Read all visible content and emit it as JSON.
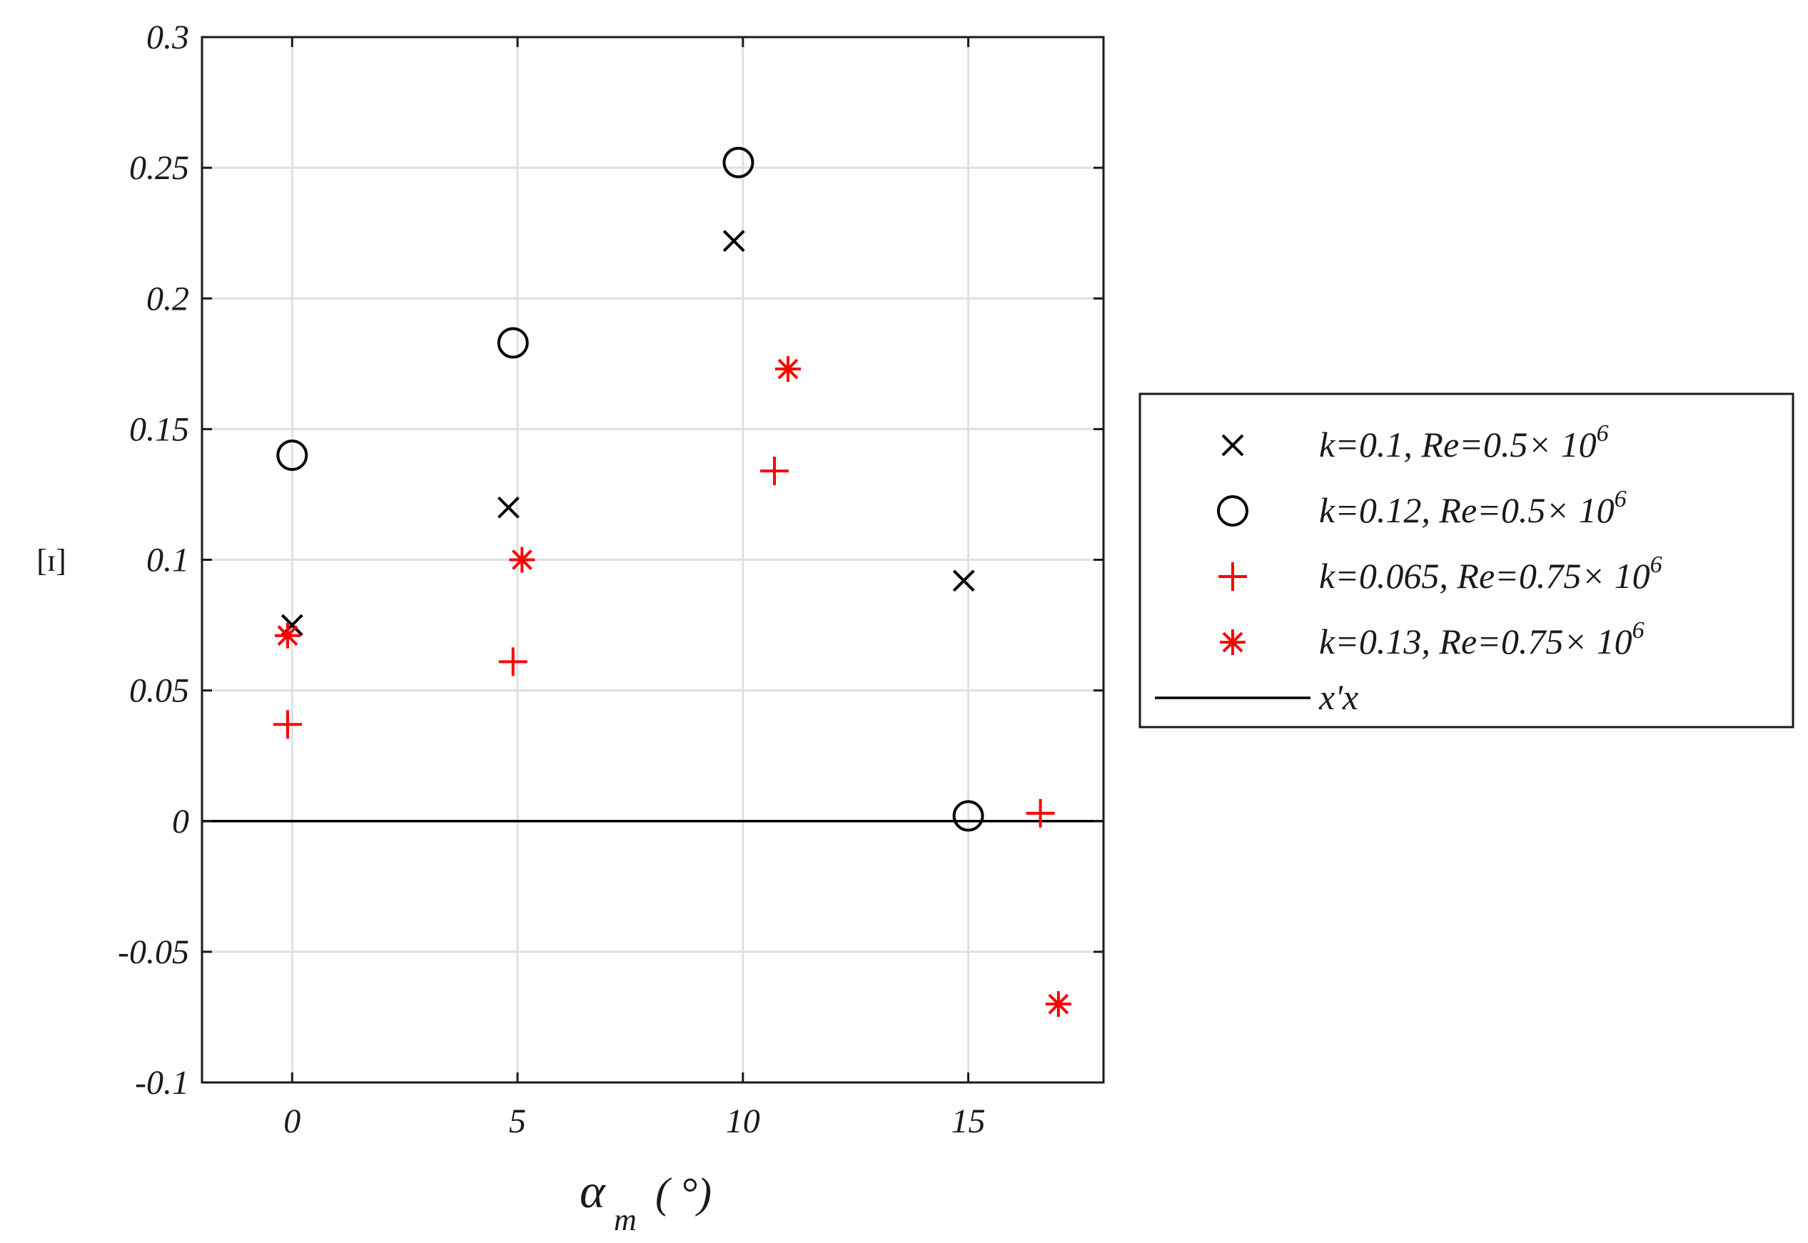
{
  "chart_data": {
    "type": "scatter",
    "title": "",
    "xlabel_main": "α",
    "xlabel_sub": "m",
    "xlabel_unit": "( °)",
    "ylabel": "[ɪ]",
    "xlim": [
      -2,
      18
    ],
    "ylim": [
      -0.1,
      0.3
    ],
    "xticks": [
      0,
      5,
      10,
      15
    ],
    "xtick_labels": [
      "0",
      "5",
      "10",
      "15"
    ],
    "yticks": [
      -0.1,
      -0.05,
      0,
      0.05,
      0.1,
      0.15,
      0.2,
      0.25,
      0.3
    ],
    "ytick_labels": [
      "-0.1",
      "-0.05",
      "0",
      "0.05",
      "0.1",
      "0.15",
      "0.2",
      "0.25",
      "0.3"
    ],
    "grid": true,
    "legend_position": "outside-right",
    "series": [
      {
        "name": "k=0.1, Re=0.5× 10",
        "exp": "6",
        "marker": "x",
        "color": "#000000",
        "x": [
          0,
          4.8,
          9.8,
          14.9
        ],
        "y": [
          0.075,
          0.12,
          0.222,
          0.092
        ]
      },
      {
        "name": "k=0.12, Re=0.5× 10",
        "exp": "6",
        "marker": "circle",
        "color": "#000000",
        "x": [
          0,
          4.9,
          9.9,
          15.0
        ],
        "y": [
          0.14,
          0.183,
          0.252,
          0.002
        ]
      },
      {
        "name": "k=0.065, Re=0.75× 10",
        "exp": "6",
        "marker": "plus",
        "color": "#ff0000",
        "x": [
          -0.1,
          4.9,
          10.7,
          16.6
        ],
        "y": [
          0.037,
          0.061,
          0.134,
          0.003
        ]
      },
      {
        "name": "k=0.13, Re=0.75× 10",
        "exp": "6",
        "marker": "asterisk",
        "color": "#ff0000",
        "x": [
          -0.1,
          5.1,
          11.0,
          17.0
        ],
        "y": [
          0.071,
          0.1,
          0.173,
          -0.07
        ]
      }
    ],
    "reference_line": {
      "name": "x'x",
      "y": 0,
      "color": "#000000"
    }
  }
}
